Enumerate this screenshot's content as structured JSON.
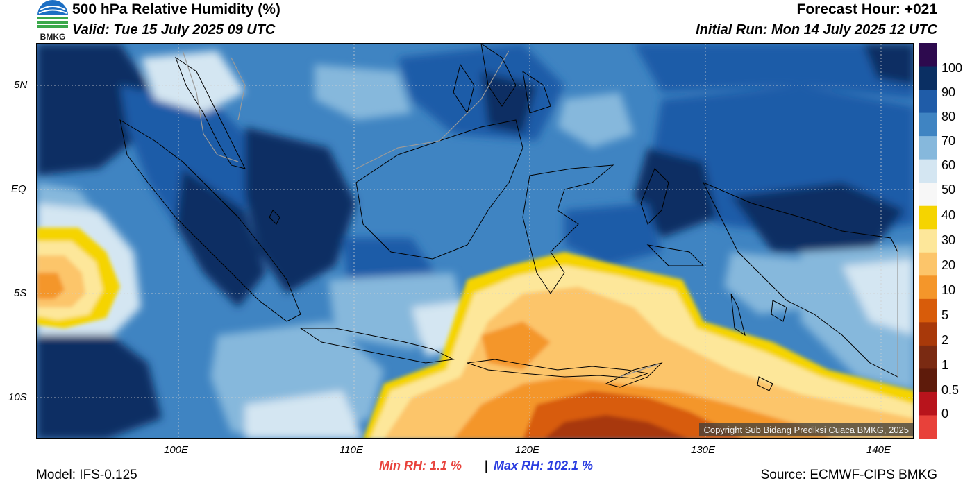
{
  "header": {
    "title": "500 hPa Relative Humidity (%)",
    "valid": "Valid: Tue 15 July 2025 09 UTC",
    "forecast_hour": "Forecast Hour: +021",
    "initial_run": "Initial Run: Mon 14 July 2025 12 UTC",
    "logo_text": "BMKG"
  },
  "axes": {
    "lat_labels": [
      "5N",
      "EQ",
      "5S",
      "10S"
    ],
    "lon_labels": [
      "100E",
      "110E",
      "120E",
      "130E",
      "140E"
    ]
  },
  "colorbar": {
    "labels": [
      "100",
      "90",
      "80",
      "70",
      "60",
      "50",
      "40",
      "30",
      "20",
      "10",
      "5",
      "2",
      "1",
      "0.5",
      "0"
    ],
    "colors": [
      "#2d0a4e",
      "#0a2f63",
      "#1f5ca8",
      "#3f84c2",
      "#86b8dc",
      "#d4e6f2",
      "#f7f7f7",
      "#f5d400",
      "#fde79a",
      "#fcc56a",
      "#f4962a",
      "#d85c0a",
      "#a8390a",
      "#7a2a12",
      "#5e1b0b",
      "#b8141c",
      "#e8413a"
    ]
  },
  "copyright": "Copyright Sub Bidang Prediksi Cuaca BMKG, 2025",
  "stats": {
    "min_rh": "Min RH:   1.1 %",
    "separator": "|",
    "max_rh": "Max RH: 102.1 %"
  },
  "footer": {
    "model": "Model: IFS-0.125",
    "source": "Source: ECMWF-CIPS BMKG"
  }
}
